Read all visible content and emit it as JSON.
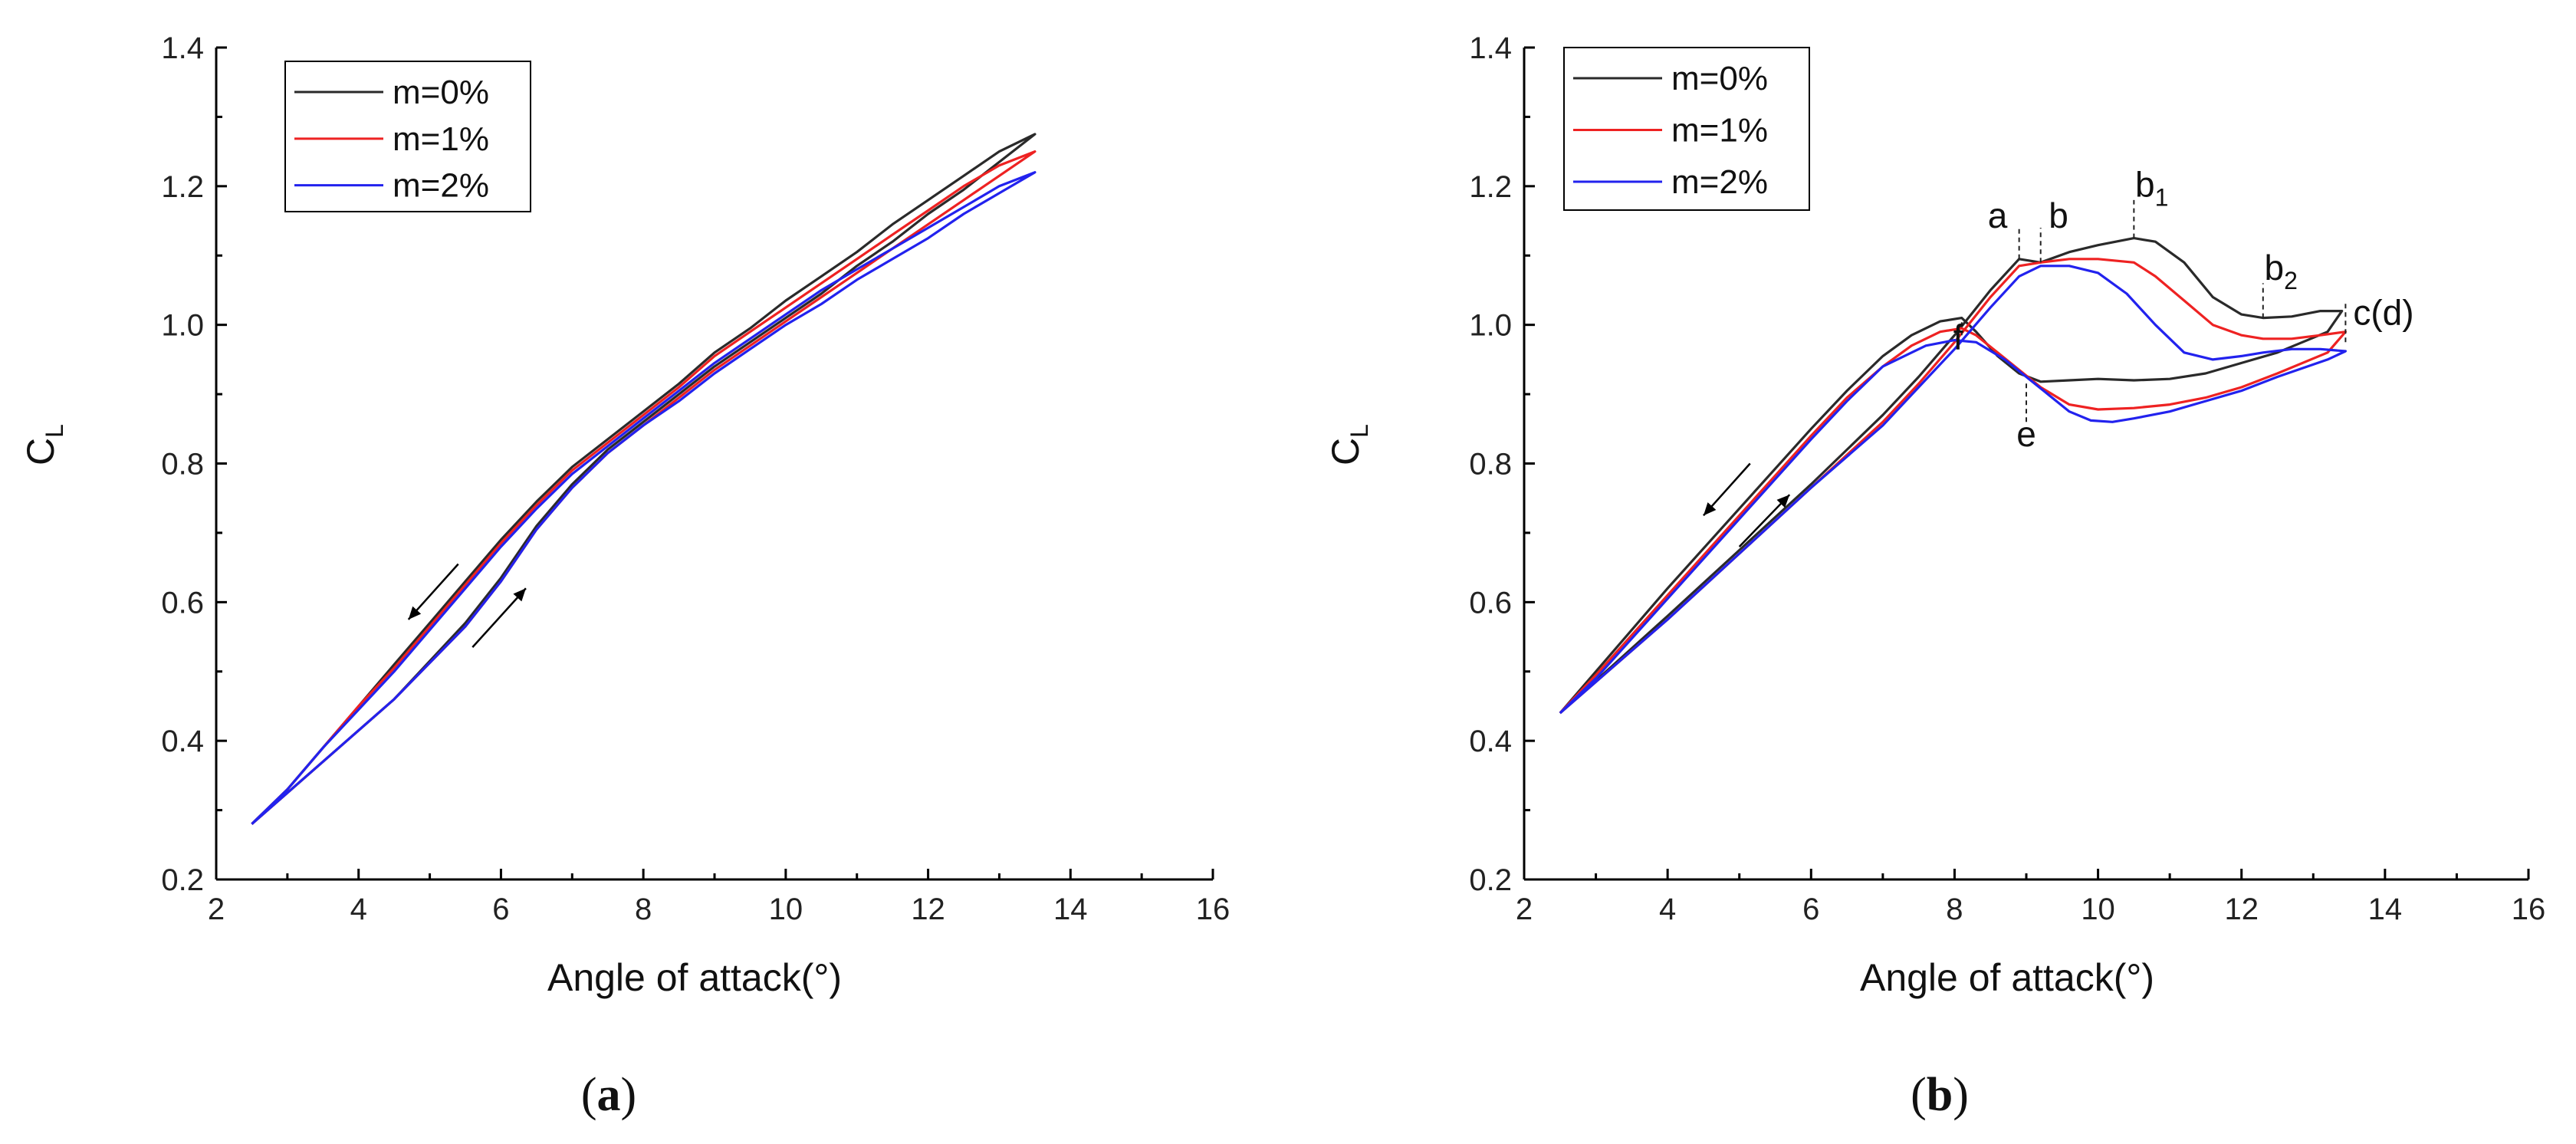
{
  "chart_data": [
    {
      "type": "line",
      "panel_label": "a",
      "xlabel": "Angle of attack(°)",
      "ylabel": "C",
      "ylabel_sub": "L",
      "xlim": [
        2,
        16
      ],
      "ylim": [
        0.2,
        1.4
      ],
      "xticks": [
        "2",
        "4",
        "6",
        "8",
        "10",
        "12",
        "14",
        "16"
      ],
      "yticks": [
        "0.2",
        "0.4",
        "0.6",
        "0.8",
        "1.0",
        "1.2",
        "1.4"
      ],
      "legend_position": "top-left",
      "series": [
        {
          "name": "m=0%",
          "color": "#2a2a2a",
          "x": [
            2.5,
            3.5,
            4.5,
            5.5,
            6.0,
            6.5,
            7.0,
            7.5,
            8.0,
            8.5,
            9.0,
            9.5,
            10.0,
            10.5,
            11.0,
            11.5,
            12.0,
            12.5,
            13.0,
            13.5,
            13.0,
            12.5,
            12.0,
            11.5,
            11.0,
            10.5,
            10.0,
            9.5,
            9.0,
            8.5,
            8.0,
            7.5,
            7.0,
            6.5,
            6.0,
            5.5,
            5.0,
            4.5,
            4.0,
            3.5,
            3.0,
            2.5
          ],
          "y": [
            0.28,
            0.37,
            0.46,
            0.57,
            0.635,
            0.71,
            0.77,
            0.82,
            0.86,
            0.9,
            0.94,
            0.975,
            1.01,
            1.045,
            1.085,
            1.12,
            1.16,
            1.195,
            1.235,
            1.275,
            1.25,
            1.215,
            1.18,
            1.145,
            1.105,
            1.07,
            1.035,
            0.995,
            0.96,
            0.915,
            0.875,
            0.835,
            0.795,
            0.745,
            0.69,
            0.63,
            0.57,
            0.51,
            0.45,
            0.39,
            0.33,
            0.28
          ]
        },
        {
          "name": "m=1%",
          "color": "#ee2222",
          "x": [
            2.5,
            3.5,
            4.5,
            5.5,
            6.0,
            6.5,
            7.0,
            7.5,
            8.0,
            8.5,
            9.0,
            9.5,
            10.0,
            10.5,
            11.0,
            11.5,
            12.0,
            12.5,
            13.0,
            13.5,
            13.0,
            12.5,
            12.0,
            11.5,
            11.0,
            10.5,
            10.0,
            9.5,
            9.0,
            8.5,
            8.0,
            7.5,
            7.0,
            6.5,
            6.0,
            5.5,
            5.0,
            4.5,
            4.0,
            3.5,
            3.0,
            2.5
          ],
          "y": [
            0.28,
            0.37,
            0.46,
            0.565,
            0.63,
            0.705,
            0.765,
            0.815,
            0.855,
            0.895,
            0.935,
            0.97,
            1.005,
            1.04,
            1.075,
            1.11,
            1.145,
            1.18,
            1.215,
            1.25,
            1.23,
            1.2,
            1.165,
            1.13,
            1.095,
            1.06,
            1.025,
            0.99,
            0.955,
            0.91,
            0.87,
            0.83,
            0.79,
            0.74,
            0.685,
            0.625,
            0.565,
            0.505,
            0.45,
            0.39,
            0.33,
            0.28
          ]
        },
        {
          "name": "m=2%",
          "color": "#2222ee",
          "x": [
            2.5,
            3.5,
            4.5,
            5.5,
            6.0,
            6.5,
            7.0,
            7.5,
            8.0,
            8.5,
            9.0,
            9.5,
            10.0,
            10.5,
            11.0,
            11.5,
            12.0,
            12.5,
            13.0,
            13.5,
            13.0,
            12.5,
            12.0,
            11.5,
            11.0,
            10.5,
            10.0,
            9.5,
            9.0,
            8.5,
            8.0,
            7.5,
            7.0,
            6.5,
            6.0,
            5.5,
            5.0,
            4.5,
            4.0,
            3.5,
            3.0,
            2.5
          ],
          "y": [
            0.28,
            0.37,
            0.46,
            0.565,
            0.63,
            0.705,
            0.765,
            0.815,
            0.855,
            0.89,
            0.93,
            0.965,
            1.0,
            1.03,
            1.065,
            1.095,
            1.125,
            1.16,
            1.19,
            1.22,
            1.2,
            1.17,
            1.14,
            1.11,
            1.08,
            1.05,
            1.015,
            0.98,
            0.945,
            0.905,
            0.865,
            0.825,
            0.785,
            0.735,
            0.68,
            0.62,
            0.56,
            0.5,
            0.445,
            0.39,
            0.33,
            0.28
          ]
        }
      ],
      "arrows": [
        {
          "direction": "down",
          "from": [
            5.4,
            0.655
          ],
          "to": [
            4.7,
            0.575
          ]
        },
        {
          "direction": "up",
          "from": [
            5.6,
            0.535
          ],
          "to": [
            6.35,
            0.62
          ]
        }
      ],
      "annotations": []
    },
    {
      "type": "line",
      "panel_label": "b",
      "xlabel": "Angle of attack(°)",
      "ylabel": "C",
      "ylabel_sub": "L",
      "xlim": [
        2,
        16
      ],
      "ylim": [
        0.2,
        1.4
      ],
      "xticks": [
        "2",
        "4",
        "6",
        "8",
        "10",
        "12",
        "14",
        "16"
      ],
      "yticks": [
        "0.2",
        "0.4",
        "0.6",
        "0.8",
        "1.0",
        "1.2",
        "1.4"
      ],
      "legend_position": "top-left",
      "series": [
        {
          "name": "m=0%",
          "color": "#2a2a2a",
          "x": [
            2.5,
            4.0,
            5.0,
            6.0,
            7.0,
            7.5,
            8.0,
            8.5,
            8.9,
            9.2,
            9.6,
            10.0,
            10.5,
            10.8,
            11.2,
            11.6,
            12.0,
            12.3,
            12.7,
            13.1,
            13.4,
            13.2,
            12.5,
            12.0,
            11.5,
            11.0,
            10.5,
            10.0,
            9.6,
            9.2,
            8.9,
            8.6,
            8.3,
            8.1,
            7.8,
            7.4,
            7.0,
            6.5,
            6.0,
            5.0,
            4.0,
            3.0,
            2.5
          ],
          "y": [
            0.44,
            0.58,
            0.675,
            0.77,
            0.87,
            0.925,
            0.985,
            1.05,
            1.095,
            1.09,
            1.105,
            1.115,
            1.125,
            1.12,
            1.09,
            1.04,
            1.015,
            1.01,
            1.012,
            1.02,
            1.02,
            0.99,
            0.96,
            0.945,
            0.93,
            0.922,
            0.92,
            0.922,
            0.92,
            0.918,
            0.93,
            0.955,
            0.99,
            1.01,
            1.005,
            0.985,
            0.955,
            0.905,
            0.85,
            0.735,
            0.62,
            0.5,
            0.44
          ]
        },
        {
          "name": "m=1%",
          "color": "#ee2222",
          "x": [
            2.5,
            4.0,
            5.0,
            6.0,
            7.0,
            7.5,
            8.0,
            8.5,
            8.9,
            9.2,
            9.6,
            10.0,
            10.5,
            10.8,
            11.2,
            11.6,
            12.0,
            12.3,
            12.7,
            13.1,
            13.45,
            13.2,
            12.5,
            12.0,
            11.5,
            11.0,
            10.5,
            10.0,
            9.6,
            9.2,
            8.9,
            8.6,
            8.3,
            8.1,
            7.8,
            7.4,
            7.0,
            6.5,
            6.0,
            5.0,
            4.0,
            3.0,
            2.5
          ],
          "y": [
            0.44,
            0.575,
            0.67,
            0.765,
            0.86,
            0.915,
            0.975,
            1.04,
            1.085,
            1.09,
            1.095,
            1.095,
            1.09,
            1.07,
            1.035,
            1.0,
            0.985,
            0.98,
            0.98,
            0.985,
            0.99,
            0.96,
            0.93,
            0.91,
            0.895,
            0.885,
            0.88,
            0.878,
            0.885,
            0.91,
            0.935,
            0.96,
            0.985,
            0.995,
            0.99,
            0.97,
            0.94,
            0.895,
            0.84,
            0.725,
            0.61,
            0.495,
            0.44
          ]
        },
        {
          "name": "m=2%",
          "color": "#2222ee",
          "x": [
            2.5,
            4.0,
            5.0,
            6.0,
            7.0,
            7.5,
            8.0,
            8.5,
            8.9,
            9.2,
            9.6,
            10.0,
            10.4,
            10.8,
            11.2,
            11.6,
            12.0,
            12.3,
            12.7,
            13.1,
            13.45,
            13.2,
            12.5,
            12.0,
            11.5,
            11.0,
            10.5,
            10.2,
            9.9,
            9.6,
            9.3,
            9.0,
            8.7,
            8.3,
            8.0,
            7.6,
            7.0,
            6.5,
            6.0,
            5.0,
            4.0,
            3.0,
            2.5
          ],
          "y": [
            0.44,
            0.575,
            0.67,
            0.765,
            0.855,
            0.91,
            0.965,
            1.025,
            1.07,
            1.085,
            1.085,
            1.075,
            1.045,
            1.0,
            0.96,
            0.95,
            0.955,
            0.96,
            0.965,
            0.965,
            0.962,
            0.95,
            0.925,
            0.905,
            0.89,
            0.875,
            0.865,
            0.86,
            0.862,
            0.875,
            0.9,
            0.925,
            0.95,
            0.975,
            0.978,
            0.97,
            0.94,
            0.89,
            0.835,
            0.72,
            0.605,
            0.49,
            0.44
          ]
        }
      ],
      "arrows": [
        {
          "direction": "down",
          "from": [
            5.15,
            0.8
          ],
          "to": [
            4.5,
            0.725
          ]
        },
        {
          "direction": "up",
          "from": [
            5.0,
            0.68
          ],
          "to": [
            5.7,
            0.755
          ]
        }
      ],
      "annotations": [
        {
          "label": "a",
          "x": 8.9,
          "y": 1.095,
          "guide": [
            1.095,
            1.14
          ],
          "text_pos": [
            8.6,
            1.14
          ]
        },
        {
          "label": "b",
          "x": 9.2,
          "y": 1.09,
          "guide": [
            1.09,
            1.14
          ],
          "text_pos": [
            9.45,
            1.14
          ]
        },
        {
          "label": "b",
          "sub": "1",
          "x": 10.5,
          "y": 1.125,
          "guide": [
            1.125,
            1.18
          ],
          "text_pos": [
            10.75,
            1.185
          ]
        },
        {
          "label": "b",
          "sub": "2",
          "x": 12.3,
          "y": 1.01,
          "guide": [
            1.01,
            1.06
          ],
          "text_pos": [
            12.55,
            1.065
          ]
        },
        {
          "label": "c(d)",
          "x": 13.45,
          "y": 1.02,
          "guide": [
            0.975,
            1.035
          ],
          "text_pos": [
            13.98,
            1.0
          ]
        },
        {
          "label": "f",
          "x": 8.1,
          "y": 1.01,
          "guide": [
            0.985,
            1.01
          ],
          "text_pos": [
            8.05,
            0.965
          ]
        },
        {
          "label": "e",
          "x": 9.0,
          "y": 0.92,
          "guide": [
            0.86,
            0.92
          ],
          "text_pos": [
            9.0,
            0.825
          ]
        }
      ]
    }
  ]
}
